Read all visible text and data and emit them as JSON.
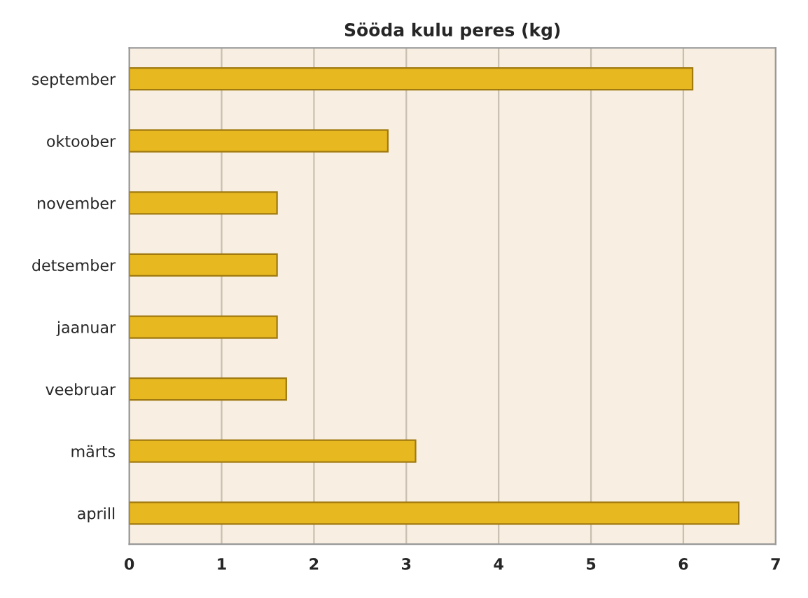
{
  "chart_data": {
    "type": "bar",
    "orientation": "horizontal",
    "title": "Sööda kulu peres (kg)",
    "categories": [
      "september",
      "oktoober",
      "november",
      "detsember",
      "jaanuar",
      "veebruar",
      "märts",
      "aprill"
    ],
    "values": [
      6.1,
      2.8,
      1.6,
      1.6,
      1.6,
      1.7,
      3.1,
      6.6
    ],
    "color": "#e8b820",
    "xlim": [
      0,
      7
    ],
    "xticks": [
      0,
      1,
      2,
      3,
      4,
      5,
      6,
      7
    ],
    "grid": "x"
  }
}
